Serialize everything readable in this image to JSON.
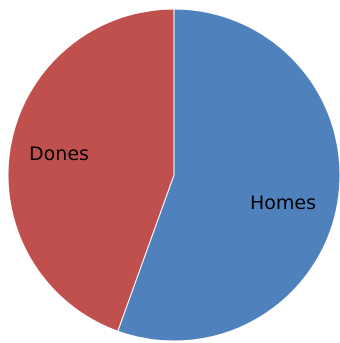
{
  "chart_data": {
    "type": "pie",
    "title": "",
    "start_angle_deg": 0,
    "direction": "clockwise",
    "slices": [
      {
        "label": "Homes",
        "value": 55.5,
        "color": "#4F81BD"
      },
      {
        "label": "Dones",
        "value": 44.5,
        "color": "#C0504D"
      }
    ],
    "legend": "none",
    "edge_color": "#ffffff"
  }
}
